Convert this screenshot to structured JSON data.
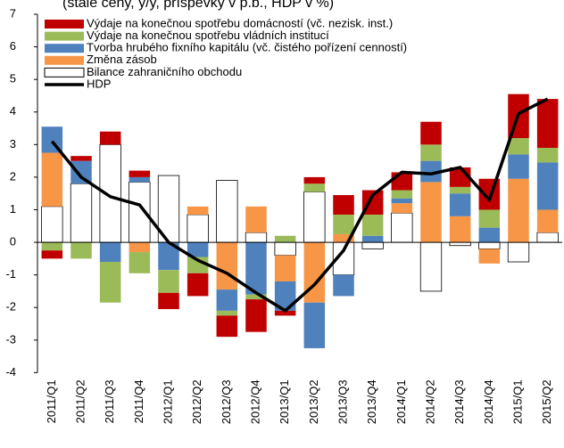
{
  "chart_data": {
    "type": "stacked-bar-line",
    "title": "(stálé ceny, y/y, příspěvky v p.b., HDP v %)",
    "categories": [
      "2011/Q1",
      "2011/Q2",
      "2011/Q3",
      "2011/Q4",
      "2012/Q1",
      "2012/Q2",
      "2012/Q3",
      "2012/Q4",
      "2013/Q1",
      "2013/Q2",
      "2013/Q3",
      "2013/Q4",
      "2014/Q1",
      "2014/Q2",
      "2014/Q3",
      "2014/Q4",
      "2015/Q1",
      "2015/Q2"
    ],
    "ylim": [
      -4,
      7
    ],
    "yticks": [
      -4,
      -3,
      -2,
      -1,
      0,
      1,
      2,
      3,
      4,
      5,
      6,
      7
    ],
    "series": [
      {
        "name": "Bilance zahraničního obchodu",
        "color": "#ffffff",
        "values": [
          1.1,
          1.8,
          3.0,
          1.85,
          2.05,
          0.85,
          1.9,
          0.3,
          -0.4,
          1.55,
          -1.0,
          -0.2,
          0.9,
          -1.5,
          -0.1,
          -0.2,
          -0.6,
          0.3
        ]
      },
      {
        "name": "Změna zásob",
        "color": "#f79646",
        "values": [
          1.65,
          0,
          0,
          -0.3,
          0,
          0.25,
          -1.45,
          0.8,
          -0.8,
          -1.85,
          0.25,
          0,
          0.3,
          1.85,
          0.8,
          -0.45,
          1.95,
          0.7
        ]
      },
      {
        "name": "Tvorba hrubého fixního kapitálu (vč. čistého pořízení cenností)",
        "color": "#4f81bd",
        "values": [
          0.8,
          0.7,
          -0.6,
          0.15,
          -0.85,
          -0.45,
          -0.65,
          -1.6,
          -0.9,
          -1.4,
          -0.65,
          0.2,
          0.15,
          0.65,
          0.7,
          0.45,
          0.75,
          1.45
        ]
      },
      {
        "name": "Výdaje na konečnou spotřebu vládních institucí",
        "color": "#9bbb59",
        "values": [
          -0.25,
          -0.5,
          -1.25,
          -0.65,
          -0.7,
          -0.5,
          -0.15,
          -0.15,
          0.2,
          0.25,
          0.6,
          0.65,
          0.25,
          0.5,
          0.2,
          0.55,
          0.5,
          0.45
        ]
      },
      {
        "name": "Výdaje na konečnou spotřebu domácností (vč. nezisk. inst.)",
        "color": "#c00000",
        "values": [
          -0.25,
          0.15,
          0.4,
          0.2,
          -0.5,
          -0.7,
          -0.65,
          -1.0,
          -0.15,
          0.2,
          0.6,
          0.75,
          0.55,
          0.7,
          0.6,
          0.95,
          1.35,
          1.5
        ]
      }
    ],
    "line": {
      "name": "HDP",
      "color": "#000000",
      "values": [
        3.1,
        2.0,
        1.4,
        1.15,
        0.0,
        -0.55,
        -0.95,
        -1.55,
        -2.1,
        -1.3,
        -0.25,
        1.45,
        2.15,
        2.1,
        2.3,
        1.3,
        3.95,
        4.4
      ]
    }
  }
}
